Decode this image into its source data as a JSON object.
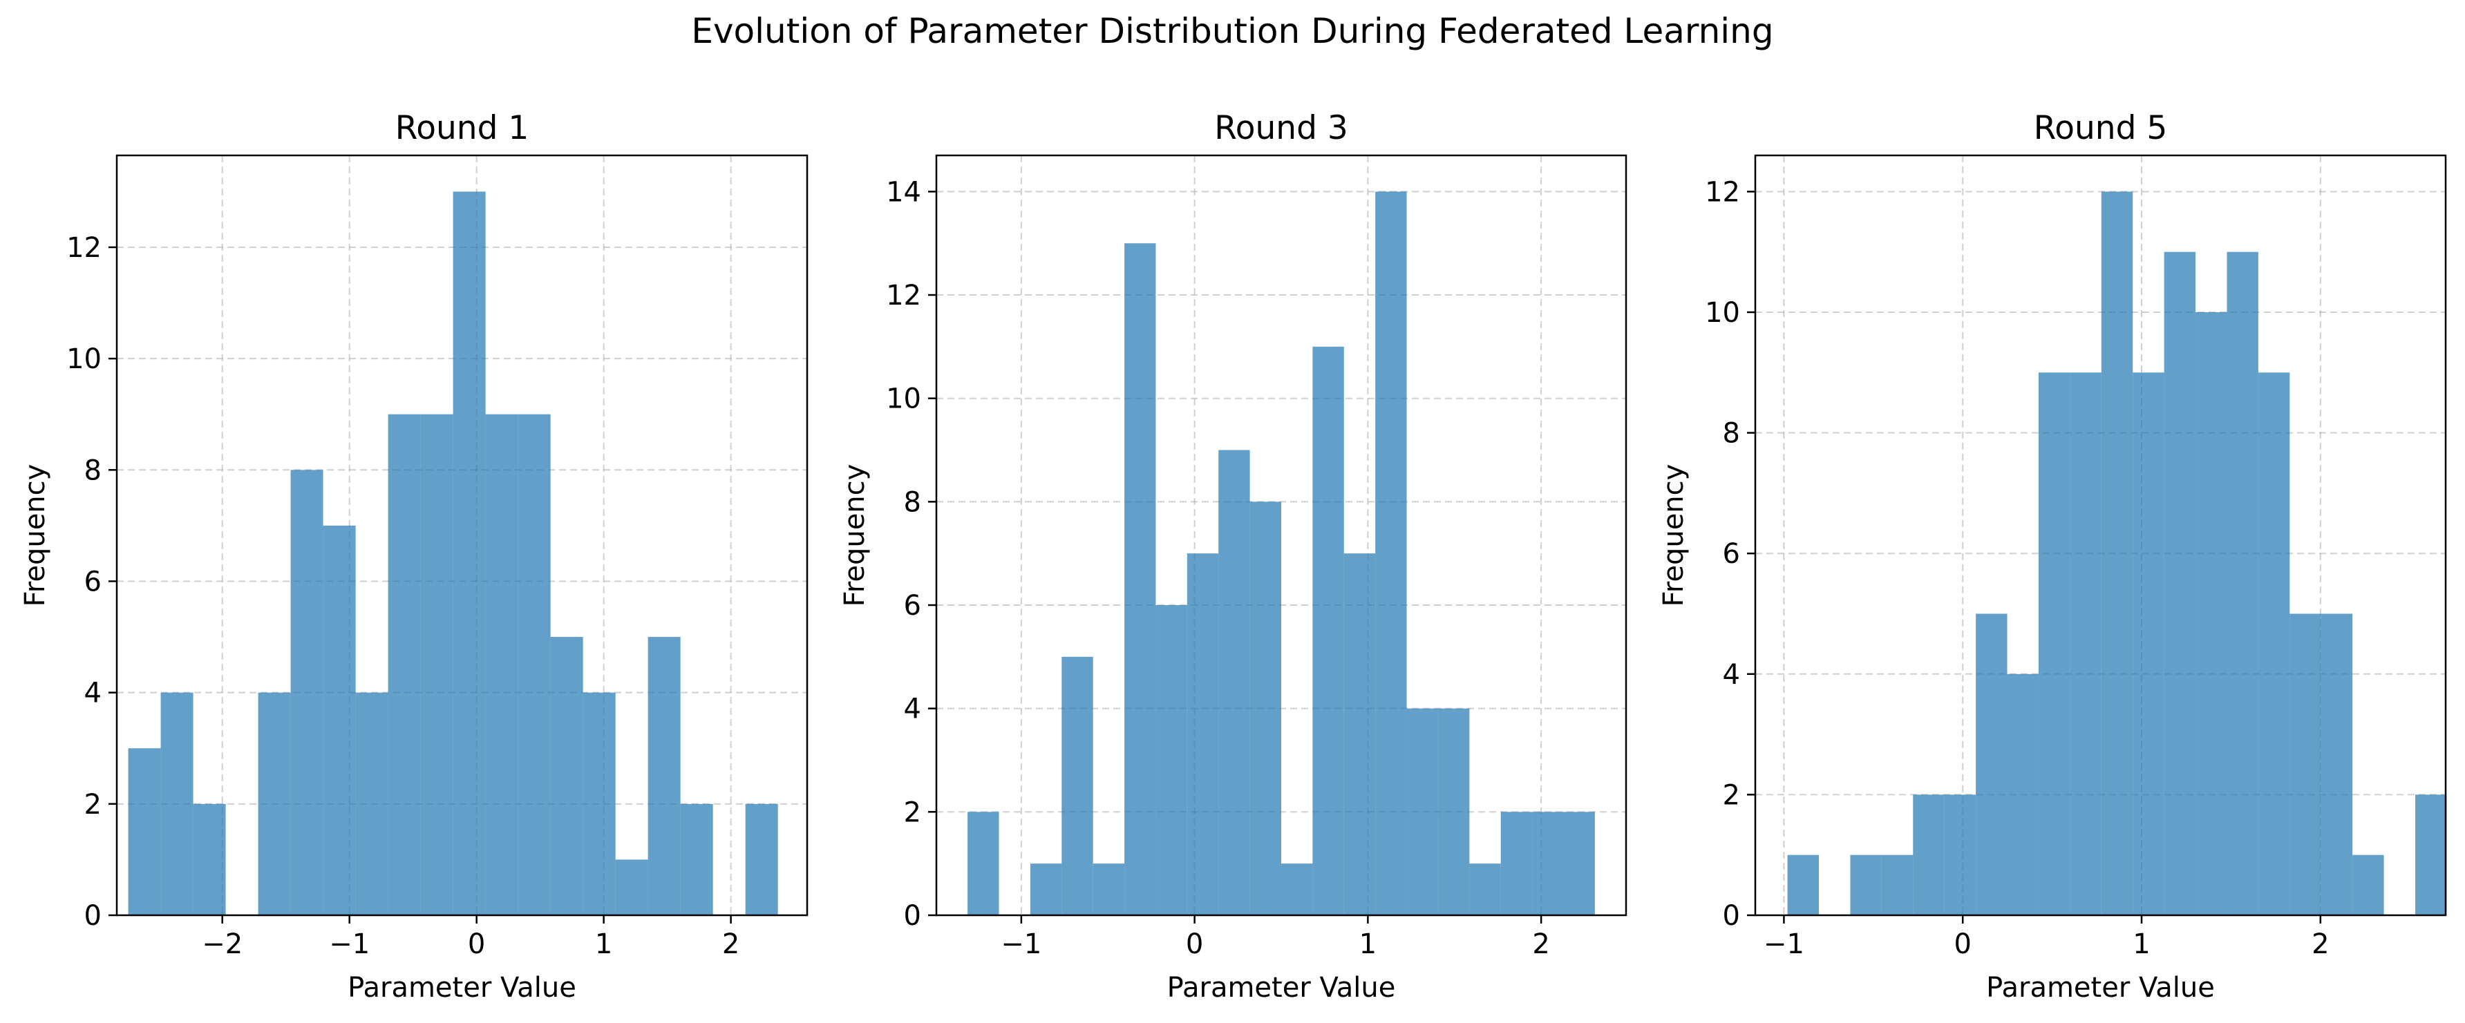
{
  "figure": {
    "title": "Evolution of Parameter Distribution During Federated Learning",
    "bar_color": "#1f77b4",
    "bar_opacity": 0.7,
    "grid_color": "#b0b0b0"
  },
  "chart_data": [
    {
      "type": "bar",
      "title": "Round 1",
      "xlabel": "Parameter Value",
      "ylabel": "Frequency",
      "grid": true,
      "xlim": [
        -2.83,
        2.6
      ],
      "ylim": [
        0,
        13.65
      ],
      "xticks": [
        -2,
        -1,
        0,
        1,
        2
      ],
      "xtick_labels": [
        "−2",
        "−1",
        "0",
        "1",
        "2"
      ],
      "yticks": [
        0,
        2,
        4,
        6,
        8,
        10,
        12
      ],
      "ytick_labels": [
        "0",
        "2",
        "4",
        "6",
        "8",
        "10",
        "12"
      ],
      "bin_start": -2.74,
      "bin_width": 0.2555,
      "values": [
        3,
        4,
        2,
        0,
        4,
        8,
        7,
        4,
        9,
        9,
        13,
        9,
        9,
        5,
        4,
        1,
        5,
        2,
        0,
        2
      ]
    },
    {
      "type": "bar",
      "title": "Round 3",
      "xlabel": "Parameter Value",
      "ylabel": "Frequency",
      "grid": true,
      "xlim": [
        -1.49,
        2.49
      ],
      "ylim": [
        0,
        14.7
      ],
      "xticks": [
        -1,
        0,
        1,
        2
      ],
      "xtick_labels": [
        "−1",
        "0",
        "1",
        "2"
      ],
      "yticks": [
        0,
        2,
        4,
        6,
        8,
        10,
        12,
        14
      ],
      "ytick_labels": [
        "0",
        "2",
        "4",
        "6",
        "8",
        "10",
        "12",
        "14"
      ],
      "bin_start": -1.31,
      "bin_width": 0.181,
      "values": [
        2,
        0,
        1,
        5,
        1,
        13,
        6,
        7,
        9,
        8,
        1,
        11,
        7,
        14,
        4,
        4,
        1,
        2,
        2,
        2
      ]
    },
    {
      "type": "bar",
      "title": "Round 5",
      "xlabel": "Parameter Value",
      "ylabel": "Frequency",
      "grid": true,
      "xlim": [
        -1.16,
        2.7
      ],
      "ylim": [
        0,
        12.6
      ],
      "xticks": [
        -1,
        0,
        1,
        2
      ],
      "xtick_labels": [
        "−1",
        "0",
        "1",
        "2"
      ],
      "yticks": [
        0,
        2,
        4,
        6,
        8,
        10,
        12
      ],
      "ytick_labels": [
        "0",
        "2",
        "4",
        "6",
        "8",
        "10",
        "12"
      ],
      "bin_start": -0.98,
      "bin_width": 0.1755,
      "values": [
        1,
        0,
        1,
        1,
        2,
        2,
        5,
        4,
        9,
        9,
        12,
        9,
        11,
        10,
        11,
        9,
        5,
        5,
        1,
        0,
        2
      ]
    }
  ]
}
